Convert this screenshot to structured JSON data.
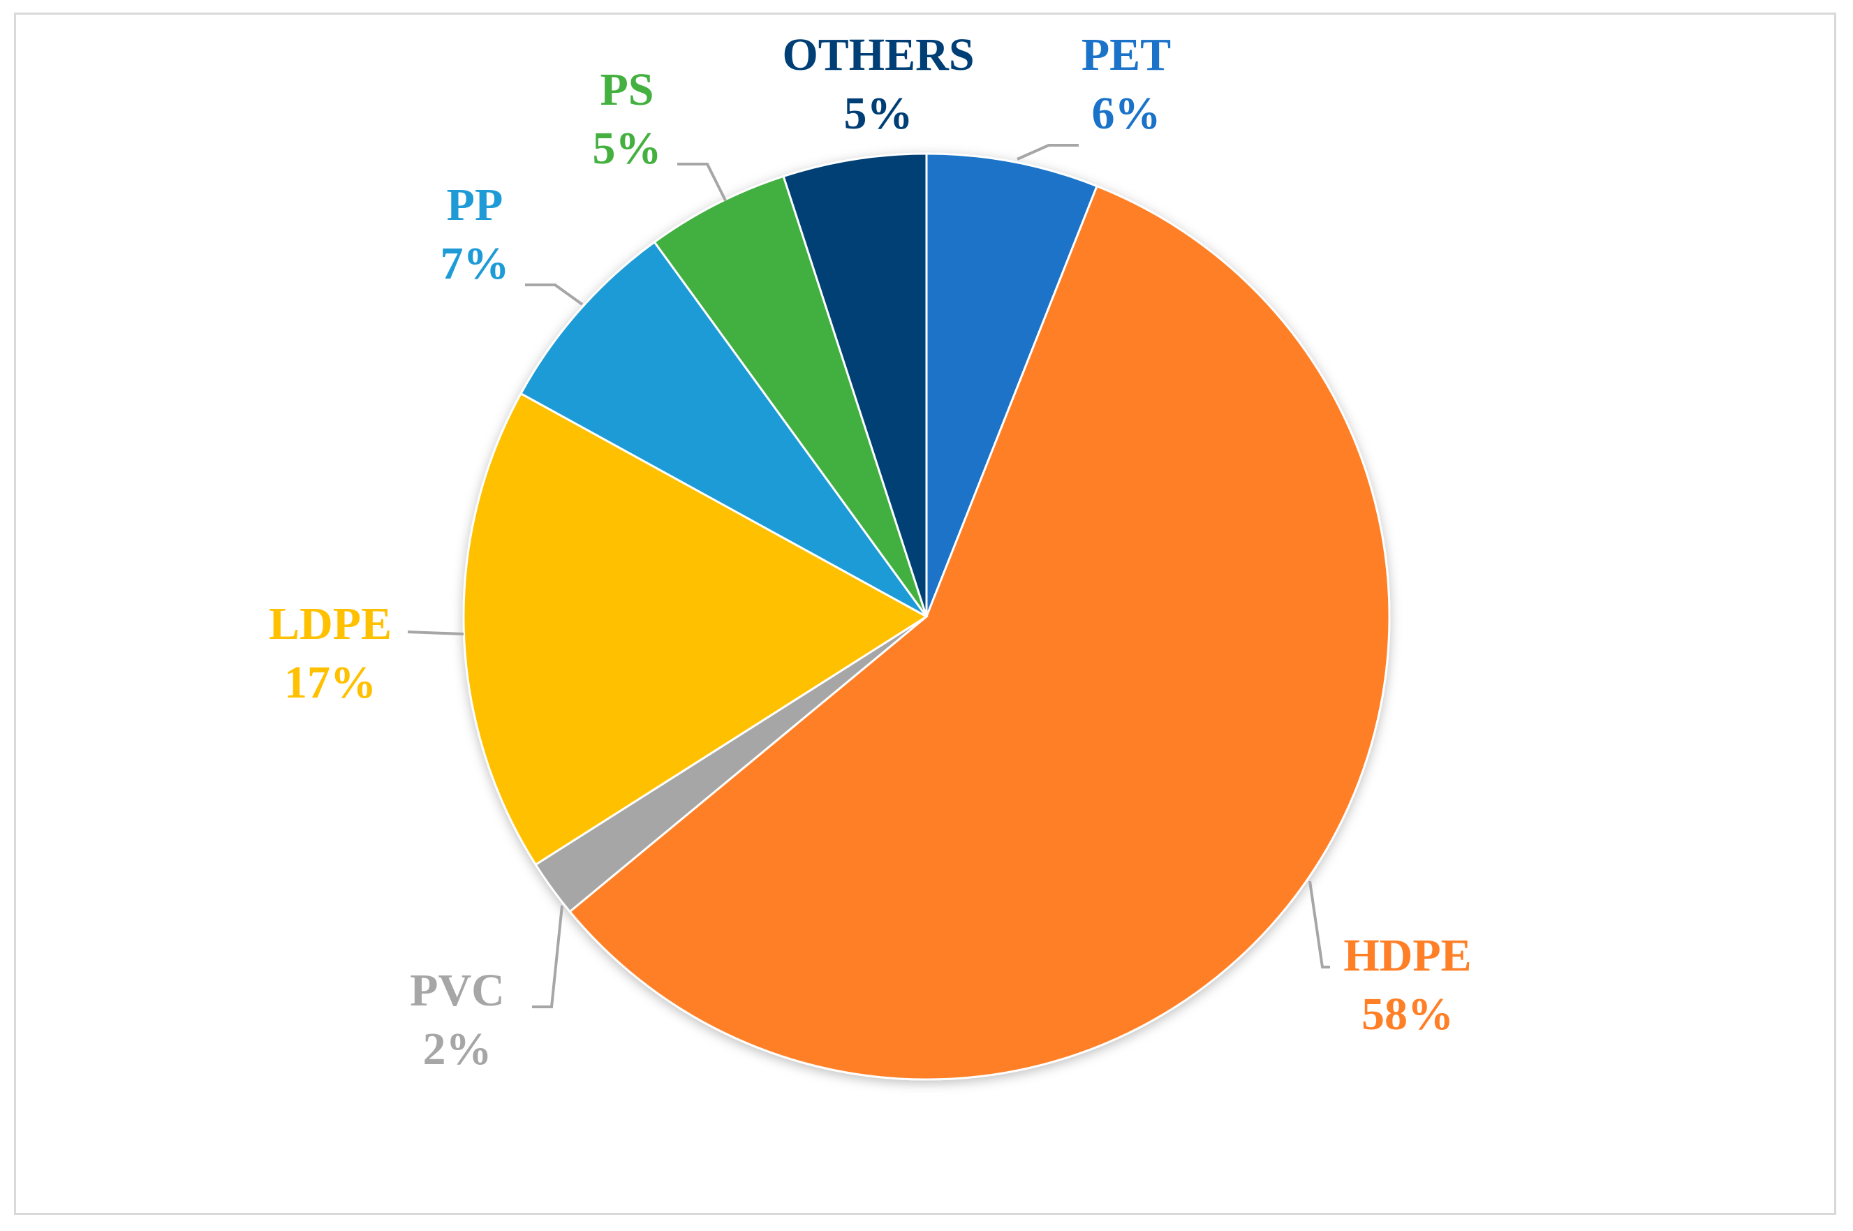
{
  "chart_data": {
    "type": "pie",
    "title": "",
    "start_angle_deg": 0,
    "direction": "clockwise",
    "slices": [
      {
        "name": "PET",
        "value": 6,
        "label": "6%",
        "color": "#1a73c8"
      },
      {
        "name": "HDPE",
        "value": 58,
        "label": "58%",
        "color": "#ff7f27"
      },
      {
        "name": "PVC",
        "value": 2,
        "label": "2%",
        "color": "#a6a6a6"
      },
      {
        "name": "LDPE",
        "value": 17,
        "label": "17%",
        "color": "#ffc000"
      },
      {
        "name": "PP",
        "value": 7,
        "label": "7%",
        "color": "#1e9bd7"
      },
      {
        "name": "PS",
        "value": 5,
        "label": "5%",
        "color": "#43b03f"
      },
      {
        "name": "OTHERS",
        "value": 5,
        "label": "5%",
        "color": "#003f75"
      }
    ],
    "legend": "none",
    "data_labels": "outside-with-leader-lines"
  }
}
